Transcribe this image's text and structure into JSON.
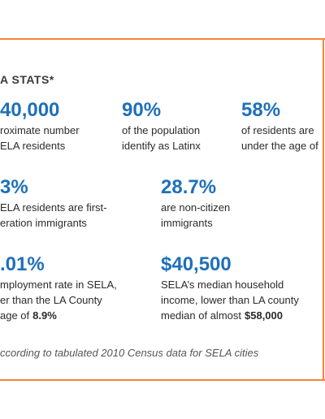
{
  "title": "A STATS*",
  "stats": [
    {
      "value": "40,000",
      "lines": [
        "roximate number",
        "ELA residents"
      ]
    },
    {
      "value": "90%",
      "lines": [
        "of the population",
        "identify as Latinx"
      ]
    },
    {
      "value": "58%",
      "lines": [
        "of residents are",
        "under the age of"
      ]
    },
    {
      "value": "3%",
      "lines": [
        "ELA residents are first-",
        "eration immigrants"
      ]
    },
    {
      "value": "28.7%",
      "lines": [
        "are non-citizen",
        "immigrants"
      ]
    },
    {
      "value": ".01%",
      "lines": [
        "mployment rate in SELA,",
        "er than the LA County",
        "age of"
      ],
      "emphasis": "8.9%"
    },
    {
      "value": "$40,500",
      "lines": [
        "SELA’s median household",
        "income, lower than LA county",
        "median of almost"
      ],
      "emphasis": "$58,000"
    }
  ],
  "footnote": "ccording to tabulated 2010 Census data for SELA cities"
}
